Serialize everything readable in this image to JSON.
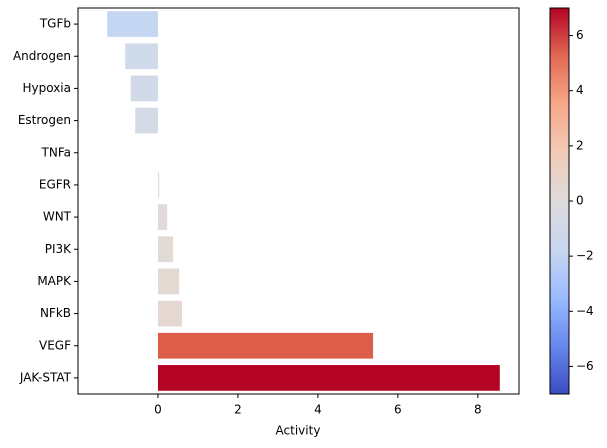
{
  "chart_data": {
    "type": "barh",
    "xlabel": "Activity",
    "categories": [
      "TGFb",
      "Androgen",
      "Hypoxia",
      "Estrogen",
      "TNFa",
      "EGFR",
      "WNT",
      "PI3K",
      "MAPK",
      "NFkB",
      "VEGF",
      "JAK-STAT"
    ],
    "values": [
      -1.27,
      -0.82,
      -0.68,
      -0.57,
      0,
      0.03,
      0.23,
      0.38,
      0.53,
      0.6,
      5.38,
      8.55
    ],
    "colors": [
      "#c5d6f2",
      "#cfdaea",
      "#d1dae9",
      "#d4dbe6",
      "#dddcdc",
      "#dddcdc",
      "#e0dbd8",
      "#e2dad5",
      "#e4d9d2",
      "#e5d8d1",
      "#dc5d4a",
      "#b40426"
    ],
    "xlim": [
      -2.0,
      9.03
    ],
    "xticks": [
      0,
      2,
      4,
      6,
      8
    ],
    "colorbar": {
      "lim": [
        -7,
        7
      ],
      "ticks": [
        {
          "value": -6,
          "label": "−6"
        },
        {
          "value": -4,
          "label": "−4"
        },
        {
          "value": -2,
          "label": "−2"
        },
        0,
        2,
        4,
        6
      ],
      "colors": [
        "#3b4cc0",
        "#6788ee",
        "#9abbff",
        "#c9d7f0",
        "#dddcdc",
        "#f2cbb7",
        "#f7a889",
        "#e26952",
        "#b40426"
      ]
    }
  }
}
